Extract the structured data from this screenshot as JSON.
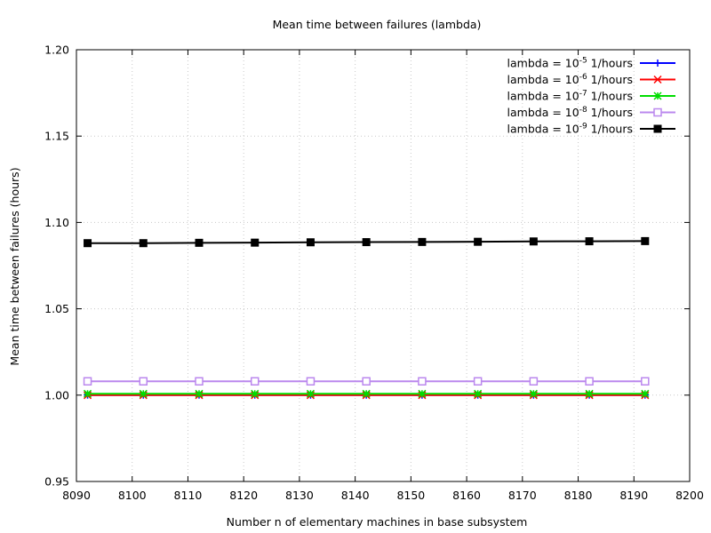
{
  "chart_data": {
    "type": "line",
    "title": "Mean time between failures (lambda)",
    "xlabel": "Number n of elementary machines in base subsystem",
    "ylabel": "Mean time between failures (hours)",
    "xlim": [
      8090,
      8200
    ],
    "ylim": [
      0.95,
      1.2
    ],
    "x_ticks": [
      "8090",
      "8100",
      "8110",
      "8120",
      "8130",
      "8140",
      "8150",
      "8160",
      "8170",
      "8180",
      "8190",
      "8200"
    ],
    "y_ticks": [
      "0.95",
      "1.00",
      "1.05",
      "1.10",
      "1.15",
      "1.20"
    ],
    "grid": true,
    "legend_position": "top-right",
    "x": [
      8092,
      8102,
      8112,
      8122,
      8132,
      8142,
      8152,
      8162,
      8172,
      8182,
      8192
    ],
    "series": [
      {
        "name": "lambda = 10-5 1/hours",
        "label_prefix": "lambda = 10",
        "label_exp": "-5",
        "label_suffix": " 1/hours",
        "color": "#0000ff",
        "marker": "plus",
        "values": [
          1.0,
          1.0,
          1.0,
          1.0,
          1.0,
          1.0,
          1.0,
          1.0,
          1.0,
          1.0,
          1.0
        ]
      },
      {
        "name": "lambda = 10-6 1/hours",
        "label_prefix": "lambda = 10",
        "label_exp": "-6",
        "label_suffix": " 1/hours",
        "color": "#ff0000",
        "marker": "cross",
        "values": [
          1.0,
          1.0,
          1.0,
          1.0,
          1.0,
          1.0,
          1.0,
          1.0,
          1.0,
          1.0,
          1.0
        ]
      },
      {
        "name": "lambda = 10-7 1/hours",
        "label_prefix": "lambda = 10",
        "label_exp": "-7",
        "label_suffix": " 1/hours",
        "color": "#00dd00",
        "marker": "star",
        "values": [
          1.0008,
          1.0008,
          1.0008,
          1.0008,
          1.0008,
          1.0008,
          1.0008,
          1.0008,
          1.0008,
          1.0008,
          1.0008
        ]
      },
      {
        "name": "lambda = 10-8 1/hours",
        "label_prefix": "lambda = 10",
        "label_exp": "-8",
        "label_suffix": " 1/hours",
        "color": "#bb88ee",
        "marker": "open-square",
        "values": [
          1.008,
          1.008,
          1.008,
          1.008,
          1.008,
          1.008,
          1.008,
          1.008,
          1.008,
          1.008,
          1.008
        ]
      },
      {
        "name": "lambda = 10-9 1/hours",
        "label_prefix": "lambda = 10",
        "label_exp": "-9",
        "label_suffix": " 1/hours",
        "color": "#000000",
        "marker": "filled-square",
        "values": [
          1.088,
          1.088,
          1.0882,
          1.0883,
          1.0885,
          1.0886,
          1.0887,
          1.0888,
          1.089,
          1.0891,
          1.0892
        ]
      }
    ]
  }
}
